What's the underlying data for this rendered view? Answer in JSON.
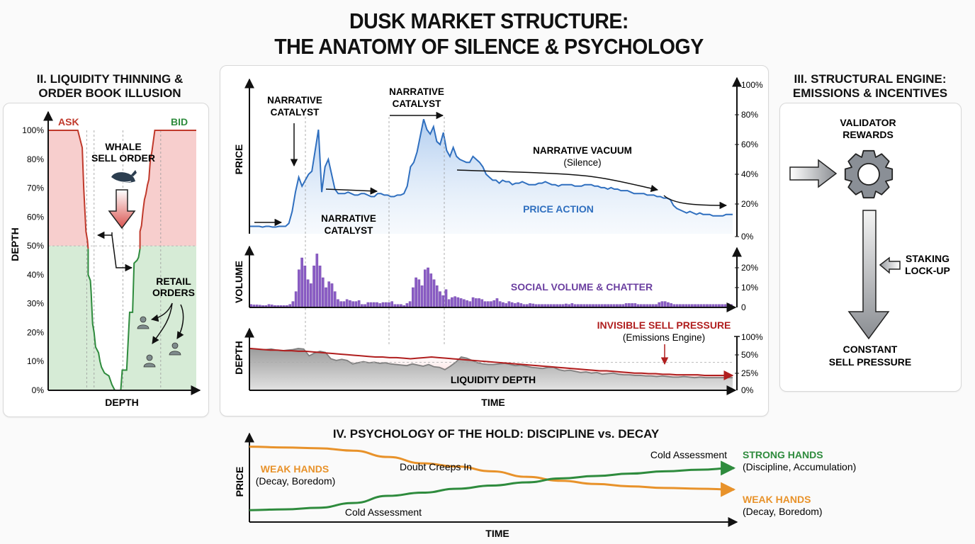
{
  "title_line1": "DUSK MARKET STRUCTURE:",
  "title_line2": "THE ANATOMY OF SILENCE & PSYCHOLOGY",
  "colors": {
    "ask_red": "#c0392b",
    "ask_fill": "#f6c6c4",
    "bid_green": "#2e8b3d",
    "bid_fill": "#cfe8cf",
    "price_blue": "#2f6fbf",
    "volume_purple": "#8a5cc4",
    "volume_label": "#6b3fa0",
    "depth_gray": "#808080",
    "sell_red": "#b01e1e",
    "weak_orange": "#e8922a",
    "strong_green": "#2e8b3d"
  },
  "chart_data": [
    {
      "id": "order-book",
      "type": "area",
      "title": "II. LIQUIDITY THINNING & ORDER BOOK ILLUSION",
      "title_line1": "II. LIQUIDITY THINNING &",
      "title_line2": "ORDER BOOK ILLUSION",
      "xlabel": "DEPTH",
      "ylabel": "DEPTH",
      "yticks": [
        "0%",
        "10%",
        "20%",
        "30%",
        "40%",
        "50%",
        "60%",
        "70%",
        "80%",
        "100%"
      ],
      "ytick_values": [
        0,
        10,
        20,
        30,
        40,
        50,
        60,
        70,
        80,
        100
      ],
      "ylim": [
        0,
        100
      ],
      "series": [
        {
          "name": "ASK",
          "side": "left",
          "points": [
            [
              0,
              100
            ],
            [
              0.2,
              100
            ],
            [
              0.23,
              88
            ],
            [
              0.24,
              70
            ],
            [
              0.255,
              55
            ],
            [
              0.265,
              52
            ],
            [
              0.27,
              49
            ],
            [
              0.27,
              40
            ],
            [
              0.285,
              38
            ],
            [
              0.29,
              34
            ],
            [
              0.3,
              23
            ],
            [
              0.31,
              20
            ],
            [
              0.32,
              15
            ],
            [
              0.34,
              13
            ],
            [
              0.35,
              10
            ],
            [
              0.36,
              8
            ],
            [
              0.38,
              6
            ],
            [
              0.41,
              5
            ],
            [
              0.43,
              2
            ],
            [
              0.45,
              0
            ]
          ]
        },
        {
          "name": "BID",
          "side": "right",
          "points": [
            [
              0.49,
              0
            ],
            [
              0.5,
              7
            ],
            [
              0.53,
              7
            ],
            [
              0.55,
              27
            ],
            [
              0.57,
              27
            ],
            [
              0.58,
              44
            ],
            [
              0.6,
              45
            ],
            [
              0.61,
              46
            ],
            [
              0.62,
              49
            ],
            [
              0.62,
              55
            ],
            [
              0.63,
              57
            ],
            [
              0.64,
              62
            ],
            [
              0.65,
              66
            ],
            [
              0.66,
              68
            ],
            [
              0.67,
              71
            ],
            [
              0.68,
              73
            ],
            [
              0.69,
              80
            ],
            [
              0.7,
              85
            ],
            [
              0.72,
              100
            ],
            [
              1,
              100
            ]
          ]
        }
      ],
      "labels": {
        "ask": "ASK",
        "bid": "BID",
        "whale_line1": "WHALE",
        "whale_line2": "SELL ORDER",
        "retail_line1": "RETAIL",
        "retail_line2": "ORDERS"
      }
    },
    {
      "id": "price",
      "type": "line",
      "ylabel": "PRICE",
      "yticks": [
        "0%",
        "20%",
        "40%",
        "60%",
        "80%",
        "100%"
      ],
      "ytick_values": [
        0,
        20,
        40,
        60,
        80,
        100
      ],
      "ylim": [
        0,
        100
      ],
      "values": [
        5,
        5,
        5,
        5,
        4.5,
        5,
        5,
        4.5,
        4.5,
        5,
        5,
        5,
        7,
        15,
        28,
        38,
        32,
        36,
        40,
        42,
        56,
        70,
        28,
        45,
        50,
        40,
        30,
        27,
        27,
        27,
        28,
        27,
        26,
        26,
        27,
        27,
        26,
        25,
        25,
        27,
        27,
        26,
        26,
        25,
        25,
        26,
        26,
        27,
        32,
        45,
        48,
        55,
        66,
        77,
        70,
        67,
        72,
        62,
        60,
        68,
        56,
        52,
        58,
        52,
        50,
        49,
        48,
        48,
        52,
        50,
        48,
        45,
        40,
        38,
        36,
        36,
        34,
        36,
        35,
        35,
        33,
        34,
        34,
        35,
        34,
        33,
        33,
        33,
        34,
        34,
        35,
        34,
        33,
        33,
        32,
        33,
        33,
        33,
        33,
        32,
        32,
        32,
        33,
        33,
        33,
        32,
        32,
        31,
        31,
        30,
        31,
        30,
        30,
        29,
        29,
        29,
        28,
        27,
        27,
        27,
        27,
        26,
        26,
        26,
        25,
        25,
        24,
        24,
        23,
        19,
        17,
        16,
        15,
        14,
        15,
        14,
        13,
        14,
        13,
        13,
        13,
        12,
        12,
        12,
        12,
        13,
        13,
        13
      ],
      "labels": {
        "catalyst1_line1": "NARRATIVE",
        "catalyst1_line2": "CATALYST",
        "catalyst2_line1": "NARRATIVE",
        "catalyst2_line2": "CATALYST",
        "catalyst3_line1": "NARRATIVE",
        "catalyst3_line2": "CATALYST",
        "vacuum": "NARRATIVE VACUUM",
        "vacuum_sub": "(Silence)",
        "price_action": "PRICE ACTION"
      }
    },
    {
      "id": "volume",
      "type": "bar",
      "ylabel": "VOLUME",
      "yticks": [
        "0",
        "10%",
        "20%"
      ],
      "ytick_values": [
        0,
        10,
        20
      ],
      "ylim": [
        0,
        30
      ],
      "values": [
        1.5,
        1.3,
        1.3,
        1.2,
        1.0,
        1.0,
        1.5,
        1.3,
        1.0,
        1.0,
        1.0,
        1.0,
        1.0,
        1.5,
        3,
        8,
        19,
        25,
        21,
        14,
        12,
        21,
        27,
        21,
        15,
        10,
        13,
        12,
        8,
        4,
        3,
        3,
        4,
        3.5,
        3,
        3,
        3.5,
        1.5,
        1.5,
        2.5,
        2.5,
        2.5,
        2.5,
        2,
        2.5,
        2.5,
        2.5,
        3,
        1.5,
        1.5,
        1.5,
        1,
        2,
        3,
        10,
        15,
        14,
        11,
        19,
        20,
        17,
        14,
        11,
        8,
        6,
        9,
        4,
        5,
        5.5,
        5,
        4.5,
        4,
        3.5,
        3,
        5,
        4.5,
        4.5,
        4,
        3,
        3,
        3,
        3.5,
        4.5,
        3,
        2.5,
        2,
        3,
        2.5,
        2,
        2.5,
        2,
        1.5,
        1.5,
        2,
        1.8,
        1.5,
        1.5,
        1.5,
        1.5,
        1.5,
        1.5,
        1.5,
        1.5,
        1.5,
        1.5,
        1.8,
        1.5,
        2,
        1.5,
        1.5,
        1.5,
        1.5,
        1.5,
        1.5,
        1.5,
        1.5,
        1.5,
        1.5,
        1.5,
        1.5,
        1.5,
        1.5,
        1.5,
        1.5,
        1.5,
        2,
        2,
        2,
        2,
        1.5,
        1.5,
        1.5,
        1.5,
        1.5,
        1.5,
        1.5,
        2.5,
        3,
        3,
        2.5,
        2,
        1.5,
        1.5,
        1.5,
        1.5,
        1.5,
        1.5,
        1.5,
        1.5,
        1.5,
        1.5,
        1.5,
        1.5,
        1.5,
        1.5,
        1.5,
        1.5,
        1.5,
        1.5,
        2,
        1.5
      ],
      "labels": {
        "series": "SOCIAL VOLUME & CHATTER"
      }
    },
    {
      "id": "liquidity",
      "type": "area",
      "xlabel": "TIME",
      "ylabel": "DEPTH",
      "yticks": [
        "0%",
        "25%",
        "50%",
        "100%"
      ],
      "ytick_values": [
        0,
        25,
        50,
        100
      ],
      "ylim": [
        0,
        100
      ],
      "series": [
        {
          "name": "LIQUIDITY DEPTH",
          "values": [
            73,
            72,
            71,
            71,
            72,
            70,
            69,
            70,
            71,
            73,
            72,
            60,
            65,
            68,
            66,
            55,
            52,
            54,
            52,
            46,
            48,
            50,
            48,
            49,
            47,
            48,
            46,
            45,
            44,
            43,
            46,
            44,
            42,
            45,
            41,
            40,
            36,
            42,
            49,
            58,
            56,
            52,
            48,
            46,
            45,
            45,
            46,
            47,
            45,
            43,
            44,
            42,
            40,
            39,
            38,
            40,
            40,
            36,
            34,
            35,
            33,
            31,
            32,
            30,
            31,
            28,
            29,
            30,
            28,
            27,
            27,
            26,
            26,
            25,
            25,
            24,
            25,
            24,
            23,
            23,
            24,
            23,
            22,
            23,
            22,
            22,
            22,
            22,
            22,
            22
          ]
        },
        {
          "name": "INVISIBLE SELL PRESSURE",
          "values": [
            73,
            72,
            71,
            70,
            70,
            69,
            69,
            68,
            68,
            67,
            66,
            65,
            64,
            63,
            62,
            61,
            60,
            59,
            58,
            58,
            57,
            57,
            56,
            55,
            56,
            57,
            58,
            57,
            56,
            55,
            54,
            53,
            52,
            51,
            50,
            49,
            48,
            47,
            46,
            45,
            44,
            43,
            42,
            41,
            40,
            39,
            38,
            37,
            36,
            35,
            34,
            34,
            33,
            32,
            31,
            30,
            30,
            29,
            29,
            28,
            28,
            27,
            27,
            27,
            27,
            26,
            26,
            26,
            26,
            26
          ]
        }
      ],
      "labels": {
        "depth": "LIQUIDITY DEPTH",
        "sell": "INVISIBLE SELL PRESSURE",
        "sell_sub": "(Emissions Engine)"
      }
    },
    {
      "id": "psychology",
      "type": "line",
      "title": "IV. PSYCHOLOGY OF THE HOLD: DISCIPLINE vs. DECAY",
      "xlabel": "TIME",
      "ylabel": "PRICE",
      "series": [
        {
          "name": "WEAK HANDS",
          "values": [
            95,
            94,
            93,
            90,
            82,
            74,
            70,
            64,
            57,
            52,
            48,
            45,
            43,
            42,
            41
          ]
        },
        {
          "name": "STRONG HANDS",
          "values": [
            15,
            16,
            18,
            24,
            33,
            37,
            42,
            46,
            50,
            55,
            58,
            61,
            64,
            66,
            68
          ]
        }
      ],
      "labels": {
        "weak_left": "WEAK HANDS",
        "weak_left_sub": "(Decay, Boredom)",
        "doubt": "Doubt Creeps In",
        "cold_bottom": "Cold Assessment",
        "cold_top": "Cold Assessment",
        "strong_right": "STRONG HANDS",
        "strong_right_sub": "(Discipline, Accumulation)",
        "weak_right": "WEAK HANDS",
        "weak_right_sub": "(Decay, Boredom)"
      }
    }
  ],
  "engine": {
    "title_line1": "III. STRUCTURAL ENGINE:",
    "title_line2": "EMISSIONS & INCENTIVES",
    "validator_line1": "VALIDATOR",
    "validator_line2": "REWARDS",
    "staking_line1": "STAKING",
    "staking_line2": "LOCK-UP",
    "sell_line1": "CONSTANT",
    "sell_line2": "SELL PRESSURE"
  }
}
